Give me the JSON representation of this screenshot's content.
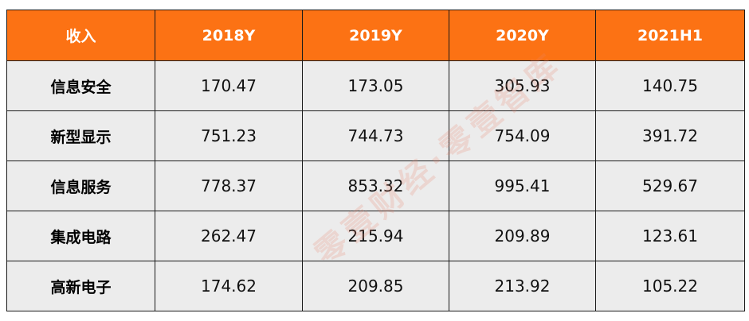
{
  "table": {
    "header": [
      "收入",
      "2018Y",
      "2019Y",
      "2020Y",
      "2021H1"
    ],
    "rows": [
      {
        "label": "信息安全",
        "values": [
          "170.47",
          "173.05",
          "305.93",
          "140.75"
        ]
      },
      {
        "label": "新型显示",
        "values": [
          "751.23",
          "744.73",
          "754.09",
          "391.72"
        ]
      },
      {
        "label": "信息服务",
        "values": [
          "778.37",
          "853.32",
          "995.41",
          "529.67"
        ]
      },
      {
        "label": "集成电路",
        "values": [
          "262.47",
          "215.94",
          "209.89",
          "123.61"
        ]
      },
      {
        "label": "高新电子",
        "values": [
          "174.62",
          "209.85",
          "213.92",
          "105.22"
        ]
      }
    ]
  },
  "watermark": {
    "text": "零壹财经·零壹智库"
  },
  "colors": {
    "header_bg": "#fc7214",
    "row_bg": "#ececec"
  }
}
